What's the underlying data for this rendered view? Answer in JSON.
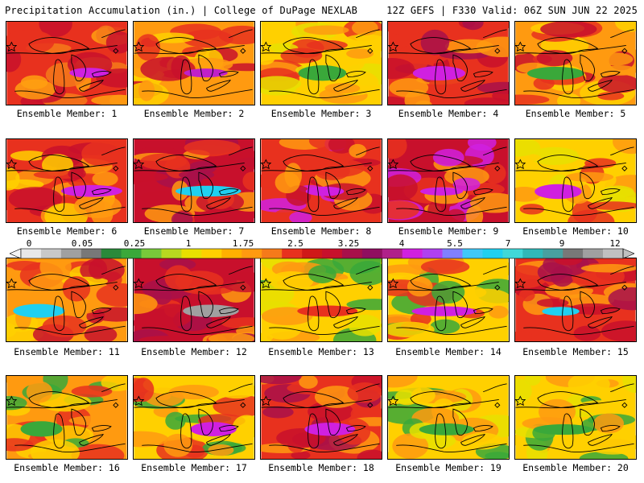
{
  "header": {
    "title_left": "Precipitation Accumulation (in.) | College of DuPage NEXLAB",
    "title_right": "12Z GEFS | F330 Valid: 06Z SUN JUN 22 2025"
  },
  "member_label_prefix": "Ensemble Member: ",
  "members": [
    {
      "label": "Ensemble Member: 1",
      "palette": [
        "#e8311e",
        "#c8102c",
        "#f57a1a",
        "#ffa010"
      ],
      "max_color": "#d020e0"
    },
    {
      "label": "Ensemble Member: 2",
      "palette": [
        "#ff9a10",
        "#e8311e",
        "#ffd000",
        "#c8102c"
      ],
      "max_color": "#c020c8"
    },
    {
      "label": "Ensemble Member: 3",
      "palette": [
        "#ffd000",
        "#ff9a10",
        "#e8e000",
        "#e8311e"
      ],
      "max_color": "#3aa83a"
    },
    {
      "label": "Ensemble Member: 4",
      "palette": [
        "#e8311e",
        "#c8102c",
        "#ff9a10",
        "#a8104a"
      ],
      "max_color": "#d020e0"
    },
    {
      "label": "Ensemble Member: 5",
      "palette": [
        "#ff9a10",
        "#e8311e",
        "#ffd000",
        "#c8102c"
      ],
      "max_color": "#3aa83a"
    },
    {
      "label": "Ensemble Member: 6",
      "palette": [
        "#e8311e",
        "#ff9a10",
        "#c8102c",
        "#ffd000"
      ],
      "max_color": "#d020e0"
    },
    {
      "label": "Ensemble Member: 7",
      "palette": [
        "#c8102c",
        "#e8311e",
        "#a8104a",
        "#ff9a10"
      ],
      "max_color": "#20d0f0"
    },
    {
      "label": "Ensemble Member: 8",
      "palette": [
        "#e8311e",
        "#c8102c",
        "#ff9a10",
        "#d020e0"
      ],
      "max_color": "#d020e0"
    },
    {
      "label": "Ensemble Member: 9",
      "palette": [
        "#c8102c",
        "#d020e0",
        "#e8311e",
        "#ff9a10"
      ],
      "max_color": "#d020e0"
    },
    {
      "label": "Ensemble Member: 10",
      "palette": [
        "#ffd000",
        "#ff9a10",
        "#e8e000",
        "#e8311e"
      ],
      "max_color": "#d020e0"
    },
    {
      "label": "Ensemble Member: 11",
      "palette": [
        "#ff9a10",
        "#e8311e",
        "#ffd000",
        "#c8102c"
      ],
      "max_color": "#20d0f0"
    },
    {
      "label": "Ensemble Member: 12",
      "palette": [
        "#c8102c",
        "#e8311e",
        "#a8104a",
        "#ff9a10"
      ],
      "max_color": "#a0a0a0"
    },
    {
      "label": "Ensemble Member: 13",
      "palette": [
        "#ffd000",
        "#3aa83a",
        "#ff9a10",
        "#e8e000"
      ],
      "max_color": "#e8311e"
    },
    {
      "label": "Ensemble Member: 14",
      "palette": [
        "#ffd000",
        "#e8311e",
        "#3aa83a",
        "#ff9a10"
      ],
      "max_color": "#d020e0"
    },
    {
      "label": "Ensemble Member: 15",
      "palette": [
        "#e8311e",
        "#c8102c",
        "#ff9a10",
        "#a8104a"
      ],
      "max_color": "#20d0f0"
    },
    {
      "label": "Ensemble Member: 16",
      "palette": [
        "#ff9a10",
        "#ffd000",
        "#e8311e",
        "#3aa83a"
      ],
      "max_color": "#3aa83a"
    },
    {
      "label": "Ensemble Member: 17",
      "palette": [
        "#ffd000",
        "#ff9a10",
        "#3aa83a",
        "#e8311e"
      ],
      "max_color": "#d020e0"
    },
    {
      "label": "Ensemble Member: 18",
      "palette": [
        "#e8311e",
        "#c8102c",
        "#ff9a10",
        "#a8104a"
      ],
      "max_color": "#d020e0"
    },
    {
      "label": "Ensemble Member: 19",
      "palette": [
        "#ffd000",
        "#e8e000",
        "#3aa83a",
        "#ff9a10"
      ],
      "max_color": "#3aa83a"
    },
    {
      "label": "Ensemble Member: 20",
      "palette": [
        "#ffd000",
        "#ff9a10",
        "#e8e000",
        "#3aa83a"
      ],
      "max_color": "#3aa83a"
    }
  ],
  "colorbar": {
    "labels": [
      "0",
      "0.05",
      "0.25",
      "1",
      "1.75",
      "2.5",
      "3.25",
      "4",
      "5.5",
      "7",
      "9",
      "12"
    ],
    "colors": [
      "#e8e8e8",
      "#c8c8c8",
      "#a0a0a0",
      "#787878",
      "#2a8a3a",
      "#3aa83a",
      "#78c83a",
      "#b8d820",
      "#e8e000",
      "#ffd000",
      "#ffb000",
      "#ff9a10",
      "#f57a1a",
      "#e8311e",
      "#d01818",
      "#c8102c",
      "#a8104a",
      "#900e60",
      "#b0208a",
      "#d020e0",
      "#b040f0",
      "#8080ff",
      "#40c8f8",
      "#20d0f0",
      "#40d8d8",
      "#30b8b8",
      "#48a0a0",
      "#787878",
      "#a0a0a0",
      "#c0c0c0"
    ]
  }
}
